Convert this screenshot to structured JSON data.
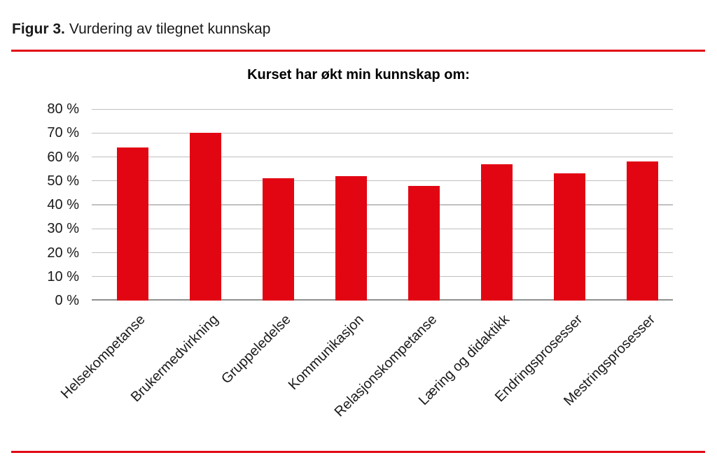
{
  "page": {
    "background": "#ffffff"
  },
  "header": {
    "figure_label": "Figur 3.",
    "figure_title": "Vurdering av tilegnet kunnskap"
  },
  "colors": {
    "accent_red": "#e20613",
    "bar_red": "#e20613",
    "gridline": "#c0c0c0",
    "zero_line": "#8f8f8f",
    "text": "#1a1a1a"
  },
  "chart_data": {
    "type": "bar",
    "title": "Kurset har økt min kunnskap om:",
    "categories": [
      "Helsekompetanse",
      "Brukermedvirkning",
      "Gruppeledelse",
      "Kommunikasjon",
      "Relasjonskompetanse",
      "Læring og didaktikk",
      "Endringsprosesser",
      "Mestringsprosesser"
    ],
    "values": [
      64,
      70,
      51,
      52,
      48,
      57,
      53,
      58
    ],
    "unit": "%",
    "xlabel": "",
    "ylabel": "",
    "ylim": [
      0,
      80
    ],
    "ytick_step": 10,
    "yticks": [
      "0 %",
      "10 %",
      "20 %",
      "30 %",
      "40 %",
      "50 %",
      "60 %",
      "70 %",
      "80 %"
    ],
    "grid": true,
    "legend": false,
    "bar_color": "#e20613"
  }
}
